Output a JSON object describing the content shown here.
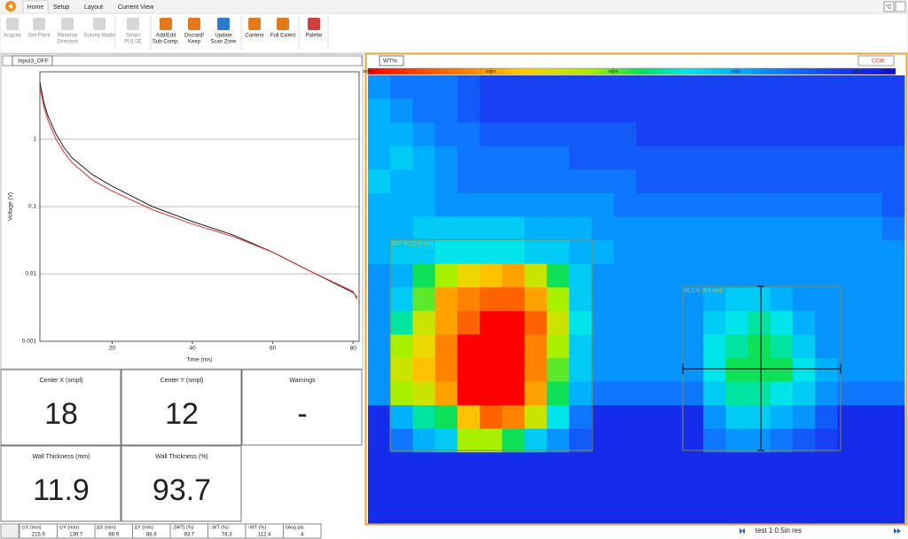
{
  "ribbon": {
    "tabs": [
      "Home",
      "Setup",
      "Layout",
      "Current View"
    ],
    "buttons": [
      {
        "label": [
          "Acquire"
        ]
      },
      {
        "label": [
          "Get Point"
        ]
      },
      {
        "label": [
          "Reverse",
          "Direction"
        ]
      },
      {
        "label": [
          "Survey Mode"
        ]
      },
      {
        "label": [
          "Smart",
          "PULSE"
        ]
      },
      {
        "label": [
          "Add/Edit",
          "Sub-Comp."
        ]
      },
      {
        "label": [
          "Discard/",
          "Keep"
        ]
      },
      {
        "label": [
          "Update",
          "Scan Zone"
        ]
      },
      {
        "label": [
          "Content"
        ]
      },
      {
        "label": [
          "Full Extent"
        ]
      },
      {
        "label": [
          "Palette"
        ]
      }
    ],
    "unit": "°C"
  },
  "left_panel": {
    "channel": "Input3_OFF"
  },
  "chart_data": [
    {
      "type": "line",
      "x_label": "Time (ms)",
      "y_label": "Voltage (V)",
      "log_y": true,
      "grid": true,
      "x": [
        2,
        3,
        4,
        6,
        8,
        10,
        15,
        20,
        30,
        40,
        50,
        60,
        70,
        80,
        81
      ],
      "series": [
        {
          "color": "#222222",
          "values": [
            7,
            3.5,
            2.2,
            1.2,
            0.75,
            0.53,
            0.3,
            0.2,
            0.1,
            0.06,
            0.038,
            0.021,
            0.0105,
            0.0053,
            0.0045
          ]
        },
        {
          "color": "#e03030",
          "values": [
            6,
            3,
            1.9,
            1.0,
            0.64,
            0.45,
            0.25,
            0.17,
            0.09,
            0.055,
            0.036,
            0.021,
            0.0105,
            0.0055,
            0.0042
          ]
        }
      ],
      "xlim": [
        2,
        81.5
      ],
      "xticks": [
        20,
        40,
        60,
        80
      ],
      "ylim": [
        0.001,
        10
      ],
      "yticks": [
        0.001,
        0.01,
        0.1,
        1
      ]
    },
    {
      "type": "heatmap",
      "measure": "WT%",
      "button": "COR",
      "zlim": [
        80,
        101.5
      ],
      "zticks": [
        {
          "value": 80,
          "label": "80.00"
        },
        {
          "value": 85,
          "label": "85.00"
        },
        {
          "value": 90,
          "label": "90.00"
        },
        {
          "value": 95,
          "label": "95.00"
        },
        {
          "value": 100,
          "label": "100.00"
        },
        {
          "value": 101,
          "label": "101.00"
        }
      ],
      "z": [
        [
          96,
          97,
          97,
          97,
          98,
          99,
          99,
          99,
          99,
          99,
          99,
          99,
          99,
          99,
          99,
          99,
          99,
          99,
          99,
          99,
          99,
          99,
          99,
          99
        ],
        [
          95,
          96,
          97,
          97,
          98,
          99,
          99,
          99,
          99,
          99,
          99,
          99,
          99,
          99,
          99,
          99,
          99,
          99,
          99,
          99,
          99,
          99,
          99,
          99
        ],
        [
          95,
          95,
          96,
          97,
          97,
          98,
          98,
          98,
          98,
          98,
          98,
          98,
          99,
          99,
          99,
          99,
          99,
          99,
          99,
          99,
          99,
          99,
          99,
          99
        ],
        [
          95,
          94,
          95,
          96,
          97,
          97,
          97,
          97,
          97,
          98,
          98,
          98,
          98,
          98,
          98,
          98,
          98,
          98,
          98,
          98,
          98,
          98,
          98,
          98
        ],
        [
          94,
          95,
          95,
          96,
          97,
          97,
          97,
          97,
          97,
          97,
          97,
          97,
          98,
          98,
          98,
          98,
          98,
          98,
          98,
          98,
          98,
          98,
          98,
          98
        ],
        [
          95,
          95,
          95,
          96,
          96,
          96,
          96,
          96,
          96,
          96,
          96,
          97,
          97,
          97,
          97,
          97,
          97,
          97,
          97,
          97,
          97,
          97,
          97,
          98
        ],
        [
          95,
          95,
          94,
          94,
          94,
          94,
          94,
          95,
          95,
          95,
          96,
          96,
          96,
          96,
          96,
          96,
          96,
          96,
          96,
          96,
          96,
          96,
          96,
          97
        ],
        [
          95,
          94,
          94,
          93,
          93,
          93,
          93,
          94,
          94,
          95,
          95,
          96,
          96,
          96,
          96,
          96,
          96,
          96,
          96,
          96,
          96,
          96,
          96,
          96
        ],
        [
          96,
          95,
          91,
          89,
          87,
          86,
          85,
          88,
          91,
          94,
          96,
          96,
          96,
          96,
          96,
          96,
          96,
          96,
          96,
          96,
          96,
          96,
          96,
          96
        ],
        [
          96,
          94,
          90,
          85,
          84,
          83,
          83,
          85,
          89,
          94,
          96,
          96,
          96,
          96,
          96,
          95,
          94,
          94,
          95,
          96,
          96,
          96,
          96,
          96
        ],
        [
          96,
          92,
          88,
          85,
          83,
          80,
          80,
          83,
          88,
          93,
          96,
          96,
          96,
          96,
          96,
          94,
          93,
          92,
          93,
          95,
          96,
          96,
          96,
          96
        ],
        [
          96,
          89,
          87,
          84,
          80,
          80,
          80,
          84,
          89,
          94,
          96,
          96,
          96,
          96,
          96,
          93,
          92,
          91,
          92,
          94,
          96,
          96,
          96,
          96
        ],
        [
          96,
          88,
          86,
          84,
          80,
          80,
          80,
          84,
          90,
          94,
          96,
          96,
          96,
          96,
          96,
          93,
          91,
          91,
          91,
          93,
          95,
          96,
          96,
          96
        ],
        [
          96,
          89,
          88,
          85,
          80,
          80,
          80,
          85,
          91,
          95,
          97,
          97,
          97,
          97,
          97,
          94,
          92,
          92,
          93,
          94,
          96,
          97,
          97,
          97
        ],
        [
          100,
          95,
          92,
          91,
          86,
          83,
          84,
          88,
          93,
          97,
          100,
          100,
          100,
          100,
          100,
          96,
          94,
          94,
          95,
          96,
          98,
          100,
          100,
          100
        ],
        [
          100,
          97,
          95,
          94,
          89,
          89,
          91,
          94,
          96,
          98,
          100,
          100,
          100,
          100,
          100,
          97,
          96,
          96,
          97,
          98,
          99,
          100,
          100,
          100
        ],
        [
          100,
          100,
          100,
          100,
          100,
          100,
          100,
          100,
          100,
          100,
          100,
          100,
          100,
          100,
          100,
          100,
          100,
          100,
          100,
          100,
          100,
          100,
          100,
          100
        ],
        [
          100,
          100,
          100,
          100,
          100,
          100,
          100,
          100,
          100,
          100,
          100,
          100,
          100,
          100,
          100,
          100,
          100,
          100,
          100,
          100,
          100,
          100,
          100,
          100
        ],
        [
          100,
          100,
          100,
          100,
          100,
          100,
          100,
          100,
          100,
          100,
          100,
          100,
          100,
          100,
          100,
          100,
          100,
          100,
          100,
          100,
          100,
          100,
          100,
          100
        ]
      ],
      "regions": [
        {
          "label": "93.7 % (11.9 mm)"
        },
        {
          "label": "96.1 % (9.8 mm)"
        }
      ]
    }
  ],
  "tiles": [
    {
      "label": "Center X (smpl)",
      "value": 18
    },
    {
      "label": "Center Y (smpl)",
      "value": 12
    },
    {
      "label": "Warnings",
      "value": "-"
    },
    {
      "label": "Wall Thickness (mm)",
      "value": 11.9
    },
    {
      "label": "Wall Thickness (%)",
      "value": 93.7
    }
  ],
  "table": {
    "headers": [
      "⊙X (mm)",
      "⊙Y (mm)",
      "ΔX (mm)",
      "ΔY (mm)",
      "↓[WT] (%)",
      "↓WT (%)",
      "↑WT (%)",
      "#Avg pts"
    ],
    "row": [
      215.9,
      139.7,
      88.9,
      88.9,
      93.7,
      74.3,
      112.4,
      4
    ]
  },
  "status": {
    "scan": "test 1 0.5in res"
  }
}
